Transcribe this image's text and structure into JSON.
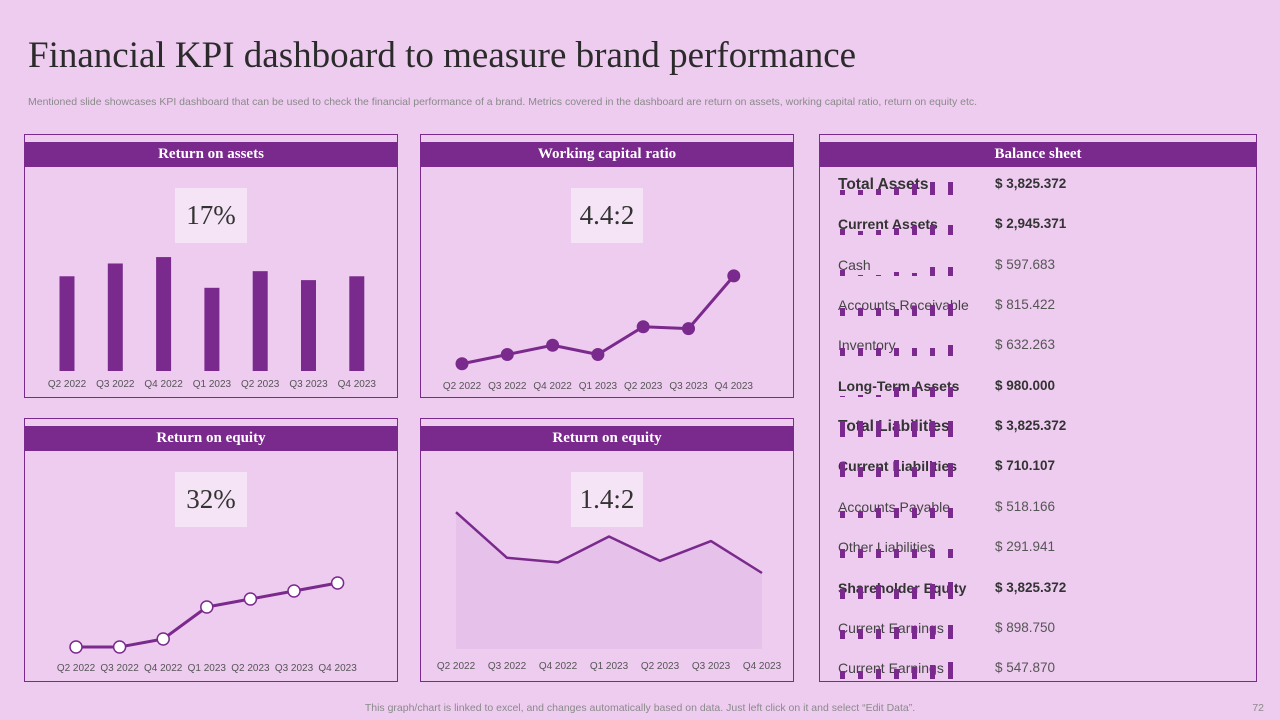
{
  "title": "Financial KPI dashboard to measure brand performance",
  "subtitle": "Mentioned slide showcases KPI dashboard that can be used to check the financial performance of a brand. Metrics covered in the dashboard are return on assets, working capital ratio, return on equity etc.",
  "footer": "This graph/chart is linked to excel, and changes automatically based on data. Just left click on it and select “Edit Data”.",
  "page_number": "72",
  "colors": {
    "accent": "#7a2a8c",
    "background": "#eeccf0",
    "kpi_box": "#f4e4f5",
    "area_fill": "#e6c2ea"
  },
  "panels": {
    "roa": {
      "header": "Return on assets",
      "kpi": "17%"
    },
    "wcr": {
      "header": "Working capital ratio",
      "kpi": "4.4:2"
    },
    "roe1": {
      "header": "Return on equity",
      "kpi": "32%"
    },
    "roe2": {
      "header": "Return on equity",
      "kpi": "1.4:2"
    }
  },
  "chart_data": [
    {
      "id": "roa",
      "type": "bar",
      "categories": [
        "Q2 2022",
        "Q3 2022",
        "Q4 2022",
        "Q1 2023",
        "Q2 2023",
        "Q3 2023",
        "Q4 2023"
      ],
      "values": [
        74,
        84,
        89,
        65,
        78,
        71,
        74
      ],
      "ylim": [
        0,
        100
      ]
    },
    {
      "id": "wcr",
      "type": "line",
      "categories": [
        "Q2 2022",
        "Q3 2022",
        "Q4 2022",
        "Q1 2023",
        "Q2 2023",
        "Q3 2023",
        "Q4 2023"
      ],
      "values": [
        10,
        20,
        30,
        20,
        50,
        48,
        105
      ],
      "ylim": [
        0,
        120
      ],
      "marker": "filled"
    },
    {
      "id": "roe1",
      "type": "line",
      "categories": [
        "Q2 2022",
        "Q3 2022",
        "Q4 2022",
        "Q1 2023",
        "Q2 2023",
        "Q3 2023",
        "Q4 2023"
      ],
      "values": [
        10,
        10,
        20,
        60,
        70,
        80,
        90
      ],
      "ylim": [
        0,
        100
      ],
      "marker": "hollow"
    },
    {
      "id": "roe2",
      "type": "area",
      "categories": [
        "Q2 2022",
        "Q3 2022",
        "Q4 2022",
        "Q1 2023",
        "Q2 2023",
        "Q3 2023",
        "Q4 2023"
      ],
      "values": [
        90,
        60,
        57,
        74,
        58,
        71,
        50
      ],
      "ylim": [
        0,
        100
      ]
    }
  ],
  "balance_sheet": {
    "header": "Balance sheet",
    "rows": [
      {
        "label": "Total Assets",
        "value": "$  3,825.372",
        "style": "bold big",
        "bars": [
          5,
          5,
          6,
          8,
          11,
          13,
          13
        ]
      },
      {
        "label": "Current Assets",
        "value": "$  2,945.371",
        "style": "bold",
        "bars": [
          6,
          4,
          5,
          7,
          9,
          10,
          10
        ]
      },
      {
        "label": "Cash",
        "value": "$  597.683",
        "style": "",
        "bars": [
          6,
          1,
          1,
          4,
          3,
          9,
          9
        ]
      },
      {
        "label": "Accounts Receivable",
        "value": "$  815.422",
        "style": "",
        "bars": [
          8,
          8,
          8,
          7,
          10,
          11,
          12
        ]
      },
      {
        "label": "Inventory",
        "value": "$  632.263",
        "style": "",
        "bars": [
          8,
          8,
          8,
          8,
          8,
          8,
          11
        ]
      },
      {
        "label": "Long-Term Assets",
        "value": "$  980.000",
        "style": "bold",
        "bars": [
          1,
          2,
          2,
          10,
          10,
          10,
          10
        ]
      },
      {
        "label": "Total Liabilities",
        "value": "$  3,825.372",
        "style": "bold big",
        "bars": [
          16,
          16,
          16,
          16,
          16,
          16,
          16
        ]
      },
      {
        "label": "Current Liabilities",
        "value": "$  710.107",
        "style": "bold",
        "bars": [
          15,
          10,
          10,
          17,
          10,
          15,
          14
        ]
      },
      {
        "label": "Accounts Payable",
        "value": "$  518.166",
        "style": "",
        "bars": [
          7,
          7,
          10,
          10,
          10,
          10,
          10
        ]
      },
      {
        "label": "Other Liabilities",
        "value": "$  291.941",
        "style": "",
        "bars": [
          9,
          9,
          9,
          9,
          9,
          9,
          9
        ]
      },
      {
        "label": "Shareholder Equity",
        "value": "$  3,825.372",
        "style": "bold",
        "bars": [
          10,
          12,
          14,
          10,
          12,
          15,
          17
        ]
      },
      {
        "label": "Current Earnings",
        "value": "$  898.750",
        "style": "",
        "bars": [
          9,
          10,
          10,
          12,
          13,
          13,
          14
        ]
      },
      {
        "label": "Current Earnings",
        "value": "$  547.870",
        "style": "",
        "bars": [
          8,
          8,
          10,
          10,
          12,
          14,
          17
        ]
      }
    ]
  }
}
